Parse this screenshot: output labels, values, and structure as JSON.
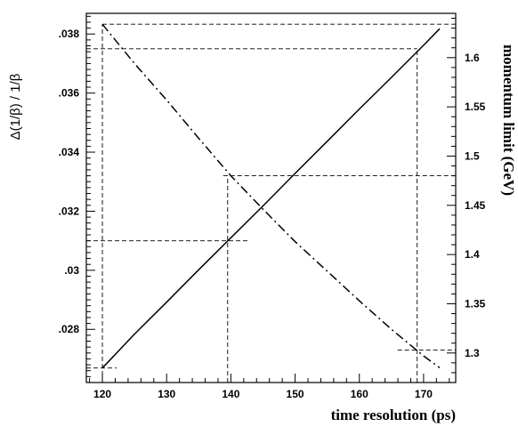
{
  "chart_data": {
    "type": "line",
    "title": "",
    "xlabel": "time resolution (ps)",
    "ylabel_left": "Δ(1/β) / 1/β",
    "ylabel_right": "momentum limit (GeV)",
    "xlim": [
      117.5,
      175
    ],
    "ylim_left": [
      0.0262,
      0.0387
    ],
    "ylim_right": [
      1.27,
      1.645
    ],
    "x_ticks": [
      120,
      130,
      140,
      150,
      160,
      170
    ],
    "y_left_ticks": [
      0.028,
      0.03,
      0.032,
      0.034,
      0.036,
      0.038
    ],
    "y_right_ticks": [
      1.3,
      1.35,
      1.4,
      1.45,
      1.5,
      1.55,
      1.6
    ],
    "grid": false,
    "series": [
      {
        "axis": "left",
        "style": "solid",
        "x": [
          120,
          125,
          130,
          135,
          140,
          145,
          150,
          155,
          160,
          165,
          170,
          172.5
        ],
        "y": [
          0.02669,
          0.02784,
          0.02892,
          0.03002,
          0.0311,
          0.03218,
          0.03328,
          0.03437,
          0.03546,
          0.03653,
          0.03762,
          0.03818
        ]
      },
      {
        "axis": "right",
        "style": "dash-dot",
        "x": [
          120,
          125,
          130,
          135,
          140,
          145,
          150,
          155,
          160,
          165,
          170,
          172.5
        ],
        "y": [
          1.634,
          1.594,
          1.557,
          1.518,
          1.48,
          1.446,
          1.413,
          1.383,
          1.353,
          1.324,
          1.297,
          1.285
        ]
      }
    ],
    "reference_lines": [
      {
        "x": 120,
        "y_left": 0.02669,
        "y_right": 1.634
      },
      {
        "x": 139.5,
        "y_left": 0.031,
        "y_right": 1.48
      },
      {
        "x": 169,
        "y_left": 0.0375,
        "y_right": 1.303
      }
    ]
  }
}
